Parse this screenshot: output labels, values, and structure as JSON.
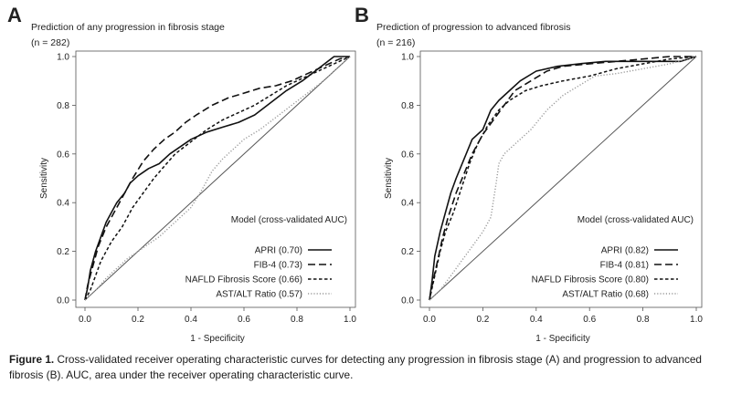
{
  "chart_data": [
    {
      "type": "line",
      "panel": "A",
      "title": "Prediction of any progression in fibrosis stage",
      "n_text": "(n = 282)",
      "xlabel": "1 - Specificity",
      "ylabel": "Sensitivity",
      "xlim": [
        0,
        1
      ],
      "ylim": [
        0,
        1
      ],
      "ticks": [
        "0.0",
        "0.2",
        "0.4",
        "0.6",
        "0.8",
        "1.0"
      ],
      "legend_title": "Model (cross-validated AUC)",
      "reference_line": [
        [
          0,
          0
        ],
        [
          1,
          1
        ]
      ],
      "series": [
        {
          "name": "APRI (0.70)",
          "style": "solid",
          "points": [
            [
              0,
              0
            ],
            [
              0.01,
              0.05
            ],
            [
              0.02,
              0.12
            ],
            [
              0.04,
              0.2
            ],
            [
              0.06,
              0.26
            ],
            [
              0.08,
              0.32
            ],
            [
              0.1,
              0.36
            ],
            [
              0.12,
              0.4
            ],
            [
              0.15,
              0.44
            ],
            [
              0.17,
              0.48
            ],
            [
              0.2,
              0.51
            ],
            [
              0.24,
              0.54
            ],
            [
              0.28,
              0.56
            ],
            [
              0.32,
              0.6
            ],
            [
              0.36,
              0.63
            ],
            [
              0.4,
              0.66
            ],
            [
              0.46,
              0.69
            ],
            [
              0.52,
              0.71
            ],
            [
              0.58,
              0.73
            ],
            [
              0.64,
              0.76
            ],
            [
              0.7,
              0.81
            ],
            [
              0.76,
              0.86
            ],
            [
              0.82,
              0.9
            ],
            [
              0.88,
              0.95
            ],
            [
              0.94,
              1
            ],
            [
              1,
              1
            ]
          ]
        },
        {
          "name": "FIB-4 (0.73)",
          "style": "longdash",
          "points": [
            [
              0,
              0
            ],
            [
              0.01,
              0.06
            ],
            [
              0.03,
              0.14
            ],
            [
              0.05,
              0.22
            ],
            [
              0.08,
              0.3
            ],
            [
              0.11,
              0.36
            ],
            [
              0.14,
              0.42
            ],
            [
              0.18,
              0.5
            ],
            [
              0.22,
              0.57
            ],
            [
              0.26,
              0.62
            ],
            [
              0.3,
              0.66
            ],
            [
              0.34,
              0.69
            ],
            [
              0.38,
              0.73
            ],
            [
              0.42,
              0.76
            ],
            [
              0.48,
              0.8
            ],
            [
              0.54,
              0.83
            ],
            [
              0.6,
              0.85
            ],
            [
              0.66,
              0.87
            ],
            [
              0.72,
              0.88
            ],
            [
              0.78,
              0.9
            ],
            [
              0.84,
              0.93
            ],
            [
              0.9,
              0.96
            ],
            [
              0.96,
              0.99
            ],
            [
              1,
              1
            ]
          ]
        },
        {
          "name": "NAFLD Fibrosis Score (0.66)",
          "style": "shortdash",
          "points": [
            [
              0,
              0
            ],
            [
              0.02,
              0.04
            ],
            [
              0.04,
              0.1
            ],
            [
              0.06,
              0.16
            ],
            [
              0.1,
              0.24
            ],
            [
              0.14,
              0.3
            ],
            [
              0.18,
              0.38
            ],
            [
              0.22,
              0.44
            ],
            [
              0.26,
              0.5
            ],
            [
              0.3,
              0.55
            ],
            [
              0.34,
              0.6
            ],
            [
              0.4,
              0.65
            ],
            [
              0.46,
              0.7
            ],
            [
              0.52,
              0.74
            ],
            [
              0.58,
              0.77
            ],
            [
              0.64,
              0.8
            ],
            [
              0.7,
              0.84
            ],
            [
              0.76,
              0.88
            ],
            [
              0.82,
              0.91
            ],
            [
              0.88,
              0.94
            ],
            [
              0.94,
              0.97
            ],
            [
              1,
              1
            ]
          ]
        },
        {
          "name": "AST/ALT Ratio (0.57)",
          "style": "dotted",
          "points": [
            [
              0,
              0
            ],
            [
              0.04,
              0.04
            ],
            [
              0.08,
              0.09
            ],
            [
              0.12,
              0.13
            ],
            [
              0.16,
              0.17
            ],
            [
              0.2,
              0.2
            ],
            [
              0.24,
              0.23
            ],
            [
              0.28,
              0.26
            ],
            [
              0.32,
              0.3
            ],
            [
              0.36,
              0.34
            ],
            [
              0.4,
              0.38
            ],
            [
              0.44,
              0.45
            ],
            [
              0.48,
              0.53
            ],
            [
              0.52,
              0.58
            ],
            [
              0.56,
              0.62
            ],
            [
              0.6,
              0.66
            ],
            [
              0.66,
              0.7
            ],
            [
              0.72,
              0.75
            ],
            [
              0.78,
              0.8
            ],
            [
              0.84,
              0.85
            ],
            [
              0.9,
              0.9
            ],
            [
              0.95,
              0.95
            ],
            [
              1,
              1
            ]
          ]
        }
      ]
    },
    {
      "type": "line",
      "panel": "B",
      "title": "Prediction of progression to advanced fibrosis",
      "n_text": "(n = 216)",
      "xlabel": "1 - Specificity",
      "ylabel": "Sensitivity",
      "xlim": [
        0,
        1
      ],
      "ylim": [
        0,
        1
      ],
      "ticks": [
        "0.0",
        "0.2",
        "0.4",
        "0.6",
        "0.8",
        "1.0"
      ],
      "legend_title": "Model (cross-validated AUC)",
      "reference_line": [
        [
          0,
          0
        ],
        [
          1,
          1
        ]
      ],
      "series": [
        {
          "name": "APRI (0.82)",
          "style": "solid",
          "points": [
            [
              0,
              0
            ],
            [
              0.01,
              0.08
            ],
            [
              0.02,
              0.18
            ],
            [
              0.04,
              0.28
            ],
            [
              0.06,
              0.36
            ],
            [
              0.08,
              0.44
            ],
            [
              0.1,
              0.5
            ],
            [
              0.13,
              0.58
            ],
            [
              0.16,
              0.66
            ],
            [
              0.2,
              0.7
            ],
            [
              0.23,
              0.78
            ],
            [
              0.26,
              0.82
            ],
            [
              0.3,
              0.86
            ],
            [
              0.34,
              0.9
            ],
            [
              0.4,
              0.94
            ],
            [
              0.48,
              0.96
            ],
            [
              0.56,
              0.97
            ],
            [
              0.66,
              0.98
            ],
            [
              0.8,
              0.98
            ],
            [
              0.94,
              0.98
            ],
            [
              1,
              1
            ]
          ]
        },
        {
          "name": "FIB-4 (0.81)",
          "style": "longdash",
          "points": [
            [
              0,
              0
            ],
            [
              0.01,
              0.06
            ],
            [
              0.03,
              0.16
            ],
            [
              0.05,
              0.26
            ],
            [
              0.07,
              0.34
            ],
            [
              0.1,
              0.44
            ],
            [
              0.13,
              0.52
            ],
            [
              0.16,
              0.6
            ],
            [
              0.2,
              0.68
            ],
            [
              0.24,
              0.74
            ],
            [
              0.28,
              0.8
            ],
            [
              0.32,
              0.86
            ],
            [
              0.38,
              0.9
            ],
            [
              0.44,
              0.94
            ],
            [
              0.5,
              0.96
            ],
            [
              0.6,
              0.97
            ],
            [
              0.7,
              0.98
            ],
            [
              0.8,
              0.99
            ],
            [
              0.9,
              1
            ],
            [
              1,
              1
            ]
          ]
        },
        {
          "name": "NAFLD Fibrosis Score (0.80)",
          "style": "shortdash",
          "points": [
            [
              0,
              0
            ],
            [
              0.02,
              0.1
            ],
            [
              0.04,
              0.2
            ],
            [
              0.06,
              0.28
            ],
            [
              0.09,
              0.36
            ],
            [
              0.12,
              0.46
            ],
            [
              0.15,
              0.56
            ],
            [
              0.18,
              0.64
            ],
            [
              0.22,
              0.72
            ],
            [
              0.26,
              0.78
            ],
            [
              0.3,
              0.82
            ],
            [
              0.36,
              0.86
            ],
            [
              0.42,
              0.88
            ],
            [
              0.5,
              0.9
            ],
            [
              0.6,
              0.92
            ],
            [
              0.7,
              0.95
            ],
            [
              0.8,
              0.97
            ],
            [
              0.9,
              0.99
            ],
            [
              1,
              1
            ]
          ]
        },
        {
          "name": "AST/ALT Ratio (0.68)",
          "style": "dotted",
          "points": [
            [
              0,
              0
            ],
            [
              0.04,
              0.04
            ],
            [
              0.08,
              0.1
            ],
            [
              0.12,
              0.16
            ],
            [
              0.16,
              0.22
            ],
            [
              0.2,
              0.28
            ],
            [
              0.23,
              0.34
            ],
            [
              0.25,
              0.48
            ],
            [
              0.26,
              0.56
            ],
            [
              0.28,
              0.6
            ],
            [
              0.32,
              0.64
            ],
            [
              0.38,
              0.7
            ],
            [
              0.44,
              0.78
            ],
            [
              0.5,
              0.84
            ],
            [
              0.56,
              0.88
            ],
            [
              0.62,
              0.92
            ],
            [
              0.7,
              0.93
            ],
            [
              0.8,
              0.95
            ],
            [
              0.9,
              0.97
            ],
            [
              1,
              1
            ]
          ]
        }
      ]
    }
  ],
  "caption": {
    "label": "Figure 1.",
    "text": " Cross-validated receiver operating characteristic curves for detecting any progression in fibrosis stage (A) and progression to advanced fibrosis (B). AUC, area under the receiver operating characteristic curve."
  }
}
